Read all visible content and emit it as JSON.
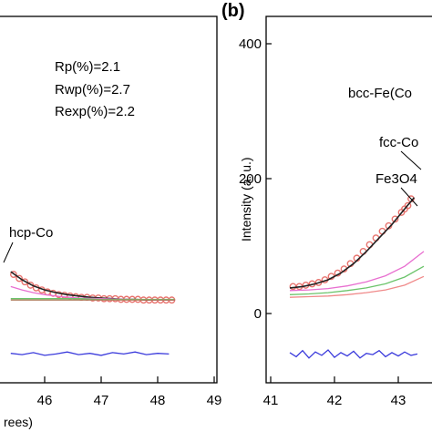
{
  "chart_data": [
    {
      "type": "line",
      "xlabel": "rees)",
      "ylabel": "",
      "xlim": [
        45.4,
        49
      ],
      "x_ticks": [
        "46",
        "47",
        "48",
        "49"
      ],
      "annotations": {
        "rp": "Rp(%)=2.1",
        "rwp": "Rwp(%)=2.7",
        "rexp": "Rexp(%)=2.2",
        "peak": "hcp-Co"
      },
      "series": [
        {
          "role": "observed",
          "color": "#e8736e",
          "x": [
            45.45,
            45.55,
            45.65,
            45.75,
            45.85,
            45.95,
            46.05,
            46.15,
            46.25,
            46.35,
            46.45,
            46.55,
            46.65,
            46.75,
            46.85,
            46.95,
            47.05,
            47.15,
            47.25,
            47.35,
            47.45,
            47.55,
            47.65,
            47.75,
            47.85,
            47.95,
            48.05,
            48.15,
            48.25
          ],
          "y": [
            58,
            52,
            47,
            42,
            38,
            35,
            32,
            30,
            28,
            27,
            26,
            25,
            24,
            24,
            23,
            23,
            22,
            22,
            22,
            21,
            21,
            21,
            21,
            20,
            20,
            20,
            20,
            20,
            20
          ]
        },
        {
          "role": "calculated",
          "color": "#222222",
          "x": [
            45.4,
            45.6,
            45.8,
            46.0,
            46.2,
            46.4,
            46.6,
            46.8,
            47.0,
            47.2,
            47.4,
            47.6,
            47.8,
            48.0,
            48.3
          ],
          "y": [
            62,
            50,
            41,
            35,
            31,
            28,
            26,
            24,
            23,
            22,
            21,
            21,
            20,
            20,
            20
          ]
        },
        {
          "role": "hcp-Co",
          "color": "#e86fd0",
          "x": [
            45.4,
            45.6,
            45.8,
            46.0,
            46.3,
            46.6,
            47.0,
            47.5,
            48.0,
            48.3
          ],
          "y": [
            40,
            35,
            31,
            28,
            25,
            23,
            22,
            21,
            20,
            20
          ]
        },
        {
          "role": "component",
          "color": "#6bc46b",
          "x": [
            45.4,
            45.8,
            46.2,
            46.6,
            47.0,
            47.5,
            48.0,
            48.3
          ],
          "y": [
            22,
            22,
            22,
            22,
            21,
            21,
            21,
            21
          ]
        },
        {
          "role": "background",
          "color": "#b08060",
          "x": [
            45.4,
            46.0,
            47.0,
            48.0,
            48.3
          ],
          "y": [
            20,
            20,
            20,
            20,
            20
          ]
        },
        {
          "role": "difference",
          "color": "#3b3bdc",
          "x": [
            45.4,
            45.6,
            45.8,
            46.0,
            46.2,
            46.4,
            46.6,
            46.8,
            47.0,
            47.2,
            47.4,
            47.6,
            47.8,
            48.0,
            48.2
          ],
          "y": [
            -59,
            -61,
            -58,
            -62,
            -60,
            -57,
            -61,
            -59,
            -62,
            -58,
            -60,
            -57,
            -61,
            -59,
            -60
          ]
        }
      ]
    },
    {
      "type": "line",
      "panel_label": "(b)",
      "ylabel": "Intensity (a. u.)",
      "xlim": [
        41,
        43.4
      ],
      "ylim": [
        -100,
        450
      ],
      "x_ticks": [
        "41",
        "42",
        "43"
      ],
      "y_ticks": [
        "0",
        "200",
        "400"
      ],
      "annotations": {
        "bcc": "bcc-Fe(Co",
        "fcc": "fcc-Co",
        "fe3o4": "Fe3O4"
      },
      "series": [
        {
          "role": "observed",
          "color": "#e8736e",
          "x": [
            41.35,
            41.45,
            41.55,
            41.65,
            41.75,
            41.85,
            41.95,
            42.05,
            42.15,
            42.25,
            42.35,
            42.45,
            42.55,
            42.65,
            42.75,
            42.85,
            42.95,
            43.05,
            43.1,
            43.15,
            43.2
          ],
          "y": [
            40,
            40,
            42,
            44,
            46,
            50,
            55,
            60,
            66,
            74,
            82,
            92,
            102,
            112,
            122,
            130,
            140,
            150,
            155,
            160,
            170
          ]
        },
        {
          "role": "calculated",
          "color": "#222222",
          "x": [
            41.3,
            41.5,
            41.7,
            41.9,
            42.1,
            42.3,
            42.5,
            42.7,
            42.9,
            43.1,
            43.25
          ],
          "y": [
            38,
            40,
            44,
            50,
            60,
            74,
            92,
            112,
            132,
            155,
            172
          ]
        },
        {
          "role": "bcc-Fe(Co)",
          "color": "#e86fd0",
          "x": [
            41.3,
            41.6,
            41.9,
            42.2,
            42.5,
            42.8,
            43.1,
            43.4
          ],
          "y": [
            34,
            35,
            37,
            41,
            47,
            56,
            70,
            92
          ]
        },
        {
          "role": "fcc-Co",
          "color": "#6bc46b",
          "x": [
            41.3,
            41.6,
            41.9,
            42.2,
            42.5,
            42.8,
            43.1,
            43.4
          ],
          "y": [
            28,
            29,
            31,
            34,
            38,
            44,
            54,
            70
          ]
        },
        {
          "role": "Fe3O4",
          "color": "#f08a8a",
          "x": [
            41.3,
            41.6,
            41.9,
            42.2,
            42.5,
            42.8,
            43.1,
            43.4
          ],
          "y": [
            24,
            25,
            26,
            28,
            31,
            35,
            42,
            55
          ]
        },
        {
          "role": "difference",
          "color": "#3b3bdc",
          "x": [
            41.3,
            41.4,
            41.5,
            41.6,
            41.7,
            41.8,
            41.9,
            42.0,
            42.1,
            42.2,
            42.3,
            42.4,
            42.5,
            42.6,
            42.7,
            42.8,
            42.9,
            43.0,
            43.1,
            43.2,
            43.3
          ],
          "y": [
            -58,
            -64,
            -55,
            -66,
            -57,
            -62,
            -54,
            -65,
            -58,
            -63,
            -56,
            -66,
            -59,
            -61,
            -55,
            -64,
            -58,
            -63,
            -57,
            -62,
            -60
          ]
        }
      ]
    }
  ]
}
